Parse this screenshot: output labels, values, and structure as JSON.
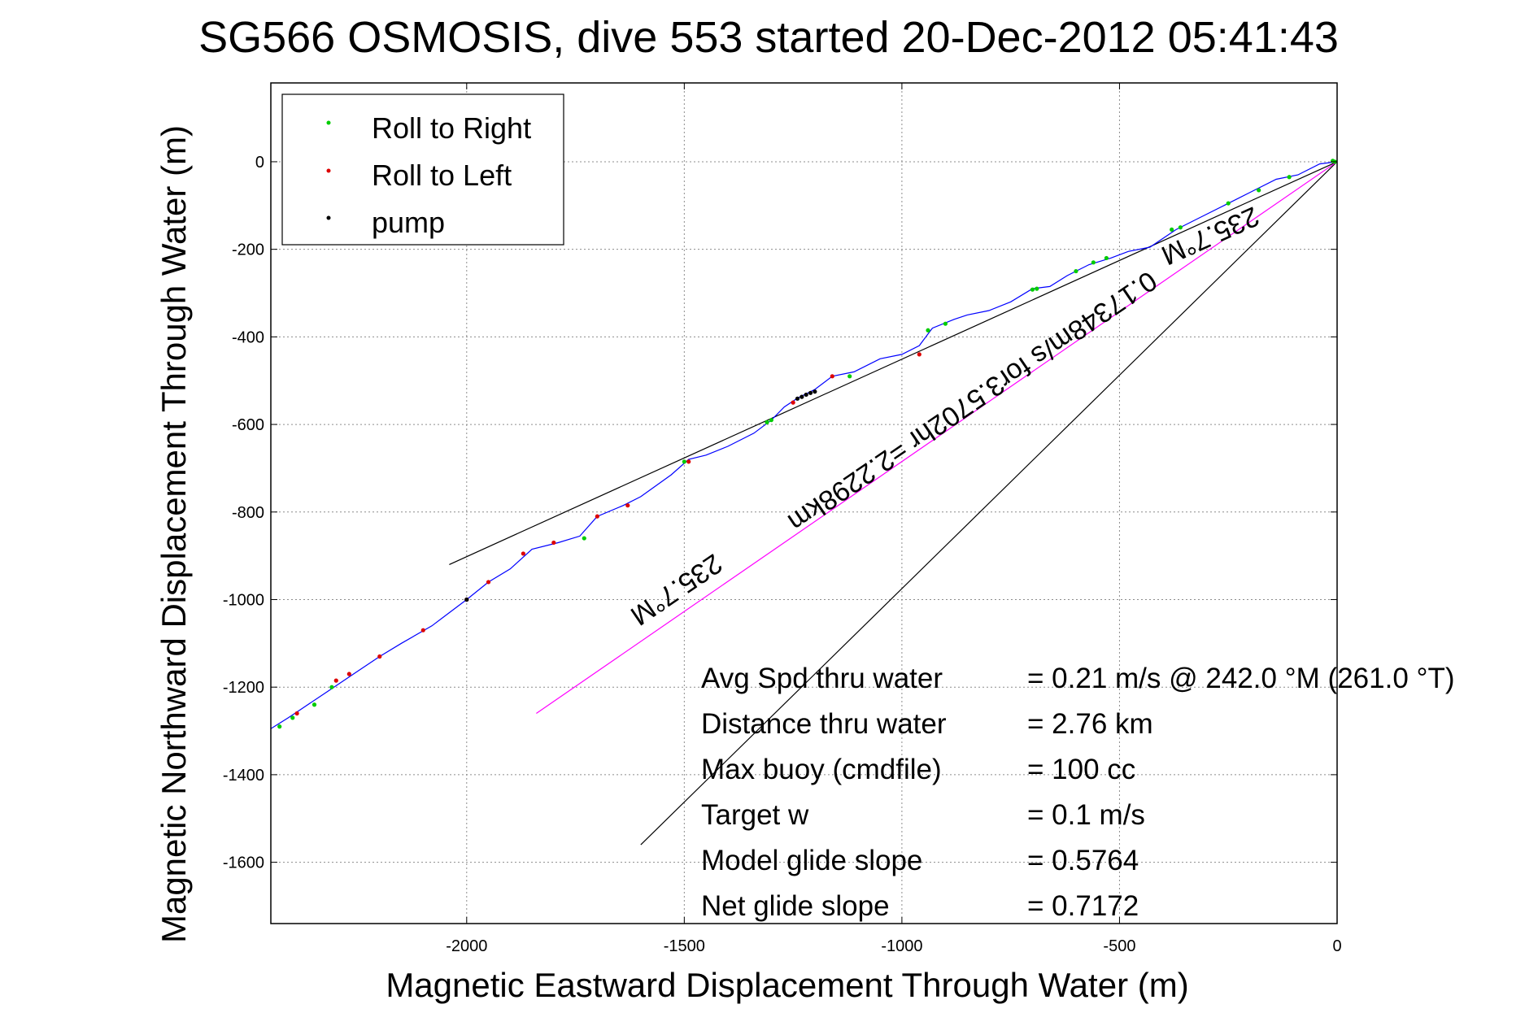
{
  "title": "SG566 OSMOSIS, dive 553 started 20-Dec-2012 05:41:43",
  "chart_data": {
    "type": "line",
    "xlabel": "Magnetic Eastward Displacement Through Water (m)",
    "ylabel": "Magnetic Northward Displacement Through Water (m)",
    "xlim": [
      -2450,
      0
    ],
    "ylim": [
      -1740,
      180
    ],
    "x_ticks": [
      -2000,
      -1500,
      -1000,
      -500,
      0
    ],
    "y_ticks": [
      0,
      -200,
      -400,
      -600,
      -800,
      -1000,
      -1200,
      -1400,
      -1600
    ],
    "grid": true,
    "legend": {
      "placement": "top-left",
      "entries": [
        {
          "label": "Roll to Right",
          "color": "#00cc00"
        },
        {
          "label": "Roll to Left",
          "color": "#dd0000"
        },
        {
          "label": "pump",
          "color": "#000000"
        }
      ]
    },
    "track": {
      "color": "#0000ff",
      "points": [
        [
          0,
          0
        ],
        [
          -40,
          -5
        ],
        [
          -90,
          -30
        ],
        [
          -140,
          -40
        ],
        [
          -200,
          -70
        ],
        [
          -260,
          -100
        ],
        [
          -320,
          -130
        ],
        [
          -370,
          -155
        ],
        [
          -430,
          -195
        ],
        [
          -480,
          -205
        ],
        [
          -520,
          -220
        ],
        [
          -570,
          -235
        ],
        [
          -620,
          -260
        ],
        [
          -660,
          -285
        ],
        [
          -700,
          -290
        ],
        [
          -750,
          -320
        ],
        [
          -800,
          -340
        ],
        [
          -850,
          -350
        ],
        [
          -880,
          -360
        ],
        [
          -930,
          -380
        ],
        [
          -960,
          -420
        ],
        [
          -1000,
          -440
        ],
        [
          -1050,
          -450
        ],
        [
          -1110,
          -480
        ],
        [
          -1160,
          -490
        ],
        [
          -1200,
          -520
        ],
        [
          -1240,
          -540
        ],
        [
          -1270,
          -560
        ],
        [
          -1300,
          -590
        ],
        [
          -1340,
          -620
        ],
        [
          -1400,
          -650
        ],
        [
          -1450,
          -670
        ],
        [
          -1490,
          -680
        ],
        [
          -1530,
          -715
        ],
        [
          -1600,
          -765
        ],
        [
          -1640,
          -785
        ],
        [
          -1700,
          -810
        ],
        [
          -1740,
          -855
        ],
        [
          -1790,
          -870
        ],
        [
          -1850,
          -885
        ],
        [
          -1900,
          -930
        ],
        [
          -1950,
          -960
        ],
        [
          -2000,
          -1000
        ],
        [
          -2040,
          -1030
        ],
        [
          -2080,
          -1060
        ],
        [
          -2150,
          -1100
        ],
        [
          -2200,
          -1130
        ],
        [
          -2260,
          -1170
        ],
        [
          -2320,
          -1210
        ],
        [
          -2380,
          -1250
        ],
        [
          -2410,
          -1270
        ],
        [
          -2450,
          -1295
        ]
      ]
    },
    "roll_right_points": [
      [
        -5,
        0
      ],
      [
        -10,
        2
      ],
      [
        -110,
        -35
      ],
      [
        -180,
        -65
      ],
      [
        -250,
        -95
      ],
      [
        -360,
        -150
      ],
      [
        -380,
        -155
      ],
      [
        -530,
        -220
      ],
      [
        -560,
        -230
      ],
      [
        -600,
        -250
      ],
      [
        -690,
        -290
      ],
      [
        -700,
        -292
      ],
      [
        -900,
        -370
      ],
      [
        -940,
        -385
      ],
      [
        -1120,
        -490
      ],
      [
        -1300,
        -590
      ],
      [
        -1310,
        -595
      ],
      [
        -1500,
        -685
      ],
      [
        -1730,
        -860
      ],
      [
        -2310,
        -1200
      ],
      [
        -2350,
        -1240
      ],
      [
        -2400,
        -1270
      ],
      [
        -2430,
        -1290
      ]
    ],
    "roll_left_points": [
      [
        -960,
        -440
      ],
      [
        -1160,
        -490
      ],
      [
        -1250,
        -550
      ],
      [
        -1490,
        -685
      ],
      [
        -1630,
        -785
      ],
      [
        -1700,
        -810
      ],
      [
        -1800,
        -870
      ],
      [
        -1870,
        -895
      ],
      [
        -1950,
        -960
      ],
      [
        -2000,
        -1000
      ],
      [
        -2100,
        -1070
      ],
      [
        -2200,
        -1130
      ],
      [
        -2270,
        -1170
      ],
      [
        -2300,
        -1185
      ],
      [
        -2390,
        -1260
      ]
    ],
    "pump_points": [
      [
        -1200,
        -525
      ],
      [
        -1210,
        -528
      ],
      [
        -1220,
        -532
      ],
      [
        -1230,
        -537
      ],
      [
        -1240,
        -541
      ],
      [
        -2000,
        -1000
      ]
    ],
    "reference_lines": [
      {
        "name": "upper-heading-line",
        "color": "#000000",
        "points": [
          [
            0,
            0
          ],
          [
            -2040,
            -920
          ]
        ]
      },
      {
        "name": "lower-heading-line",
        "color": "#000000",
        "points": [
          [
            0,
            0
          ],
          [
            -1600,
            -1560
          ]
        ]
      },
      {
        "name": "magenta-line",
        "color": "#ff00ff",
        "points": [
          [
            0,
            0
          ],
          [
            -1840,
            -1260
          ]
        ]
      }
    ],
    "annotations": [
      {
        "text": "235.7°M",
        "x": -300,
        "y": -150
      },
      {
        "text": "0.17348m/s for3.5702hr =2.2298km",
        "x": -850,
        "y": -530
      },
      {
        "text": "235.7°M",
        "x": -1530,
        "y": -960
      }
    ],
    "stats": [
      {
        "label": "Avg Spd thru water",
        "value": "=  0.21 m/s @ 242.0 °M (261.0 °T)"
      },
      {
        "label": "Distance thru water",
        "value": "=  2.76 km"
      },
      {
        "label": "Max buoy (cmdfile)",
        "value": "= 100 cc"
      },
      {
        "label": "Target w",
        "value": "= 0.1 m/s"
      },
      {
        "label": "Model glide slope",
        "value": "= 0.5764"
      },
      {
        "label": "Net glide slope",
        "value": "= 0.7172"
      }
    ]
  }
}
